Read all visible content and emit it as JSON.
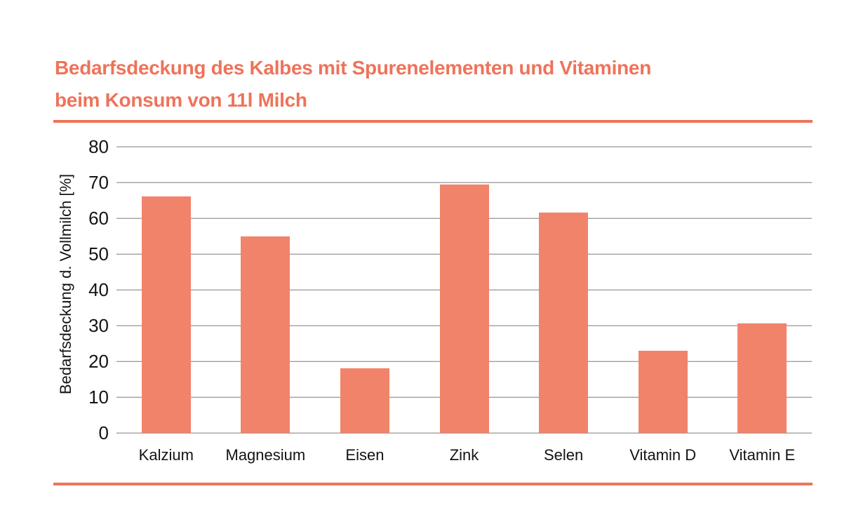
{
  "colors": {
    "accent": "#EE735A",
    "bar": "#F2836B",
    "gridline": "#7C7C7C",
    "text": "#141414",
    "background": "#FFFFFF"
  },
  "title": {
    "line1": "Bedarfsdeckung des Kalbes mit Spurenelementen und Vitaminen",
    "line2": "beim Konsum von 11l Milch"
  },
  "chart_data": {
    "type": "bar",
    "title": "Bedarfsdeckung des Kalbes mit Spurenelementen und Vitaminen beim Konsum von 11l Milch",
    "categories": [
      "Kalzium",
      "Magnesium",
      "Eisen",
      "Zink",
      "Selen",
      "Vitamin D",
      "Vitamin E"
    ],
    "values": [
      66,
      55,
      18,
      69.5,
      61.5,
      23,
      30.5
    ],
    "xlabel": "",
    "ylabel": "Bedarfsdeckung d. Vollmilch [%]",
    "ylim": [
      0,
      80
    ],
    "yticks": [
      0,
      10,
      20,
      30,
      40,
      50,
      60,
      70,
      80
    ],
    "grid": "horizontal-only",
    "legend": "none",
    "bar_color": "#F2836B"
  }
}
